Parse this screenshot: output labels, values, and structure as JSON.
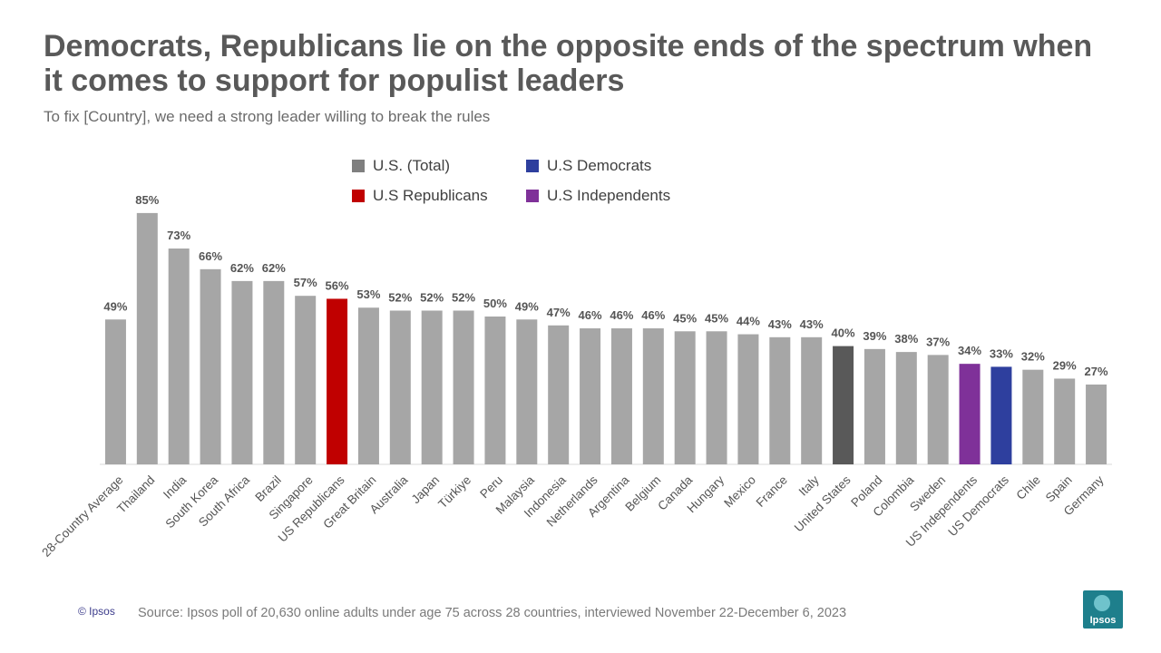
{
  "header": {
    "title": "Democrats, Republicans lie on the opposite ends of the spectrum when it comes to support for populist leaders",
    "subtitle": "To fix [Country], we need a strong leader willing to break the rules"
  },
  "legend": [
    {
      "label": "U.S. (Total)",
      "color": "#7f7f7f"
    },
    {
      "label": "U.S Democrats",
      "color": "#2e3f9e"
    },
    {
      "label": "U.S Republicans",
      "color": "#c00000"
    },
    {
      "label": "U.S Independents",
      "color": "#7f3199"
    }
  ],
  "chart_data": {
    "type": "bar",
    "categories": [
      "28-Country Average",
      "Thailand",
      "India",
      "South Korea",
      "South Africa",
      "Brazil",
      "Singapore",
      "US Republicans",
      "Great Britain",
      "Australia",
      "Japan",
      "Türkiye",
      "Peru",
      "Malaysia",
      "Indonesia",
      "Netherlands",
      "Argentina",
      "Belgium",
      "Canada",
      "Hungary",
      "Mexico",
      "France",
      "Italy",
      "United States",
      "Poland",
      "Colombia",
      "Sweden",
      "US Independents",
      "US Democrats",
      "Chile",
      "Spain",
      "Germany"
    ],
    "values": [
      49,
      85,
      73,
      66,
      62,
      62,
      57,
      56,
      53,
      52,
      52,
      52,
      50,
      49,
      47,
      46,
      46,
      46,
      45,
      45,
      44,
      43,
      43,
      40,
      39,
      38,
      37,
      34,
      33,
      32,
      29,
      27
    ],
    "value_suffix": "%",
    "bar_colors": [
      "#a6a6a6",
      "#a6a6a6",
      "#a6a6a6",
      "#a6a6a6",
      "#a6a6a6",
      "#a6a6a6",
      "#a6a6a6",
      "#c00000",
      "#a6a6a6",
      "#a6a6a6",
      "#a6a6a6",
      "#a6a6a6",
      "#a6a6a6",
      "#a6a6a6",
      "#a6a6a6",
      "#a6a6a6",
      "#a6a6a6",
      "#a6a6a6",
      "#a6a6a6",
      "#a6a6a6",
      "#a6a6a6",
      "#a6a6a6",
      "#a6a6a6",
      "#595959",
      "#a6a6a6",
      "#a6a6a6",
      "#a6a6a6",
      "#7f3199",
      "#2e3f9e",
      "#a6a6a6",
      "#a6a6a6",
      "#a6a6a6"
    ],
    "ylim": [
      0,
      100
    ],
    "grid": false
  },
  "footer": {
    "copyright": "© Ipsos",
    "source": "Source: Ipsos poll of 20,630 online adults under age 75 across 28 countries, interviewed November 22-December 6, 2023",
    "logo_text": "Ipsos"
  }
}
